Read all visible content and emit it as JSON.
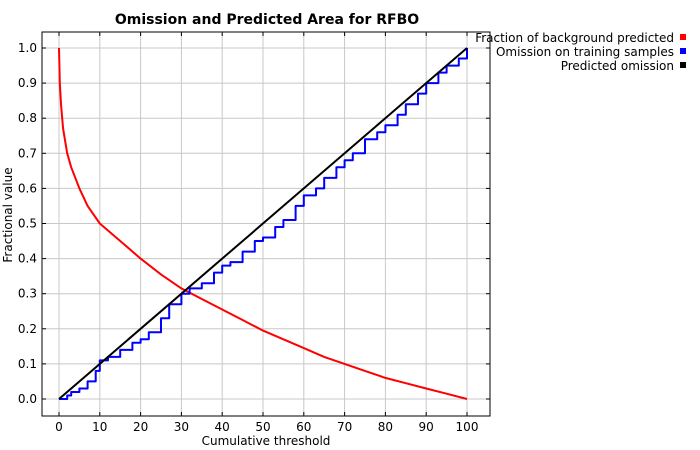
{
  "chart_data": {
    "type": "line",
    "title": "Omission and Predicted Area for RFBO",
    "xlabel": "Cumulative threshold",
    "ylabel": "Fractional value",
    "xlim": [
      0,
      100
    ],
    "ylim": [
      0,
      1
    ],
    "x_ticks": [
      "0",
      "10",
      "20",
      "30",
      "40",
      "50",
      "60",
      "70",
      "80",
      "90",
      "100"
    ],
    "y_ticks": [
      "0.0",
      "0.1",
      "0.2",
      "0.3",
      "0.4",
      "0.5",
      "0.6",
      "0.7",
      "0.8",
      "0.9",
      "1.0"
    ],
    "grid": true,
    "legend_position": "top-right",
    "series": [
      {
        "name": "Fraction of background predicted",
        "color": "#ff0000",
        "x": [
          0,
          0.2,
          0.5,
          1,
          2,
          3,
          5,
          7,
          10,
          15,
          20,
          25,
          30,
          35,
          40,
          45,
          50,
          55,
          60,
          65,
          70,
          75,
          80,
          85,
          90,
          95,
          100
        ],
        "y": [
          1.0,
          0.9,
          0.84,
          0.77,
          0.7,
          0.66,
          0.6,
          0.55,
          0.5,
          0.45,
          0.4,
          0.355,
          0.315,
          0.285,
          0.255,
          0.225,
          0.195,
          0.17,
          0.145,
          0.12,
          0.1,
          0.08,
          0.06,
          0.045,
          0.03,
          0.015,
          0.0
        ]
      },
      {
        "name": "Omission on training samples",
        "color": "#0000ff",
        "x": [
          0,
          1,
          2,
          3,
          5,
          7,
          9,
          10,
          12,
          15,
          18,
          20,
          22,
          25,
          27,
          30,
          32,
          35,
          38,
          40,
          42,
          45,
          48,
          50,
          53,
          55,
          58,
          60,
          63,
          65,
          68,
          70,
          72,
          75,
          78,
          80,
          83,
          85,
          88,
          90,
          93,
          95,
          98,
          100
        ],
        "y": [
          0.0,
          0.0,
          0.01,
          0.02,
          0.03,
          0.05,
          0.08,
          0.11,
          0.12,
          0.14,
          0.16,
          0.17,
          0.19,
          0.23,
          0.27,
          0.3,
          0.315,
          0.33,
          0.36,
          0.38,
          0.39,
          0.42,
          0.45,
          0.46,
          0.49,
          0.51,
          0.55,
          0.58,
          0.6,
          0.63,
          0.66,
          0.68,
          0.7,
          0.74,
          0.76,
          0.78,
          0.81,
          0.84,
          0.87,
          0.9,
          0.93,
          0.95,
          0.97,
          1.0
        ]
      },
      {
        "name": "Predicted omission",
        "color": "#000000",
        "x": [
          0,
          100
        ],
        "y": [
          0,
          1
        ]
      }
    ]
  }
}
